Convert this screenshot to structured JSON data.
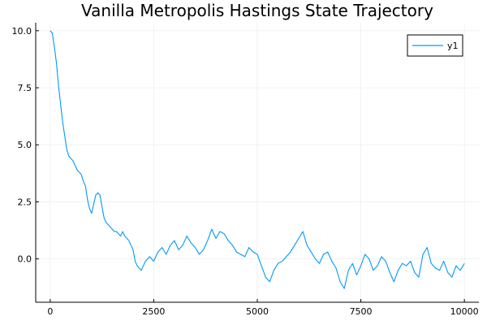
{
  "chart_data": {
    "type": "line",
    "title": "Vanilla Metropolis Hastings State Trajectory",
    "xlabel": "",
    "ylabel": "",
    "xlim": [
      -350,
      10350
    ],
    "ylim": [
      -1.9,
      10.35
    ],
    "x_ticks": [
      0,
      2500,
      5000,
      7500,
      10000
    ],
    "x_tick_labels": [
      "0",
      "2500",
      "5000",
      "7500",
      "10000"
    ],
    "y_ticks": [
      0.0,
      2.5,
      5.0,
      7.5,
      10.0
    ],
    "y_tick_labels": [
      "0.0",
      "2.5",
      "5.0",
      "7.5",
      "10.0"
    ],
    "grid": true,
    "legend_position": "top-right",
    "series": [
      {
        "name": "y1",
        "color": "#009af9",
        "x": [
          0,
          50,
          100,
          150,
          200,
          250,
          300,
          350,
          400,
          450,
          500,
          550,
          600,
          650,
          700,
          750,
          800,
          850,
          900,
          950,
          1000,
          1050,
          1100,
          1150,
          1200,
          1250,
          1300,
          1350,
          1400,
          1450,
          1500,
          1550,
          1600,
          1650,
          1700,
          1750,
          1800,
          1850,
          1900,
          1950,
          2000,
          2050,
          2100,
          2150,
          2200,
          2300,
          2400,
          2500,
          2600,
          2700,
          2800,
          2900,
          3000,
          3100,
          3200,
          3300,
          3400,
          3500,
          3600,
          3700,
          3800,
          3900,
          4000,
          4100,
          4200,
          4300,
          4400,
          4500,
          4600,
          4700,
          4800,
          4900,
          5000,
          5100,
          5200,
          5300,
          5400,
          5500,
          5600,
          5700,
          5800,
          5900,
          6000,
          6100,
          6200,
          6300,
          6400,
          6500,
          6600,
          6700,
          6800,
          6900,
          7000,
          7100,
          7200,
          7300,
          7400,
          7500,
          7600,
          7700,
          7800,
          7900,
          8000,
          8100,
          8200,
          8300,
          8400,
          8500,
          8600,
          8700,
          8800,
          8900,
          9000,
          9100,
          9200,
          9300,
          9400,
          9500,
          9600,
          9700,
          9800,
          9900,
          10000
        ],
        "y": [
          10.0,
          9.9,
          9.3,
          8.6,
          7.6,
          6.8,
          6.0,
          5.4,
          4.8,
          4.5,
          4.4,
          4.3,
          4.1,
          3.9,
          3.8,
          3.7,
          3.4,
          3.2,
          2.6,
          2.2,
          2.0,
          2.4,
          2.8,
          2.9,
          2.8,
          2.3,
          1.8,
          1.6,
          1.5,
          1.4,
          1.3,
          1.2,
          1.2,
          1.1,
          1.0,
          1.2,
          1.0,
          0.9,
          0.8,
          0.6,
          0.4,
          -0.1,
          -0.3,
          -0.4,
          -0.5,
          -0.1,
          0.1,
          -0.1,
          0.3,
          0.5,
          0.2,
          0.6,
          0.8,
          0.4,
          0.6,
          1.0,
          0.7,
          0.5,
          0.2,
          0.4,
          0.8,
          1.3,
          0.9,
          1.2,
          1.1,
          0.8,
          0.6,
          0.3,
          0.2,
          0.1,
          0.5,
          0.3,
          0.2,
          -0.3,
          -0.8,
          -1.0,
          -0.5,
          -0.2,
          -0.1,
          0.1,
          0.3,
          0.6,
          0.9,
          1.2,
          0.6,
          0.3,
          0.0,
          -0.2,
          0.2,
          0.3,
          -0.1,
          -0.4,
          -1.0,
          -1.3,
          -0.5,
          -0.2,
          -0.7,
          -0.3,
          0.2,
          0.0,
          -0.5,
          -0.3,
          0.1,
          -0.1,
          -0.6,
          -1.0,
          -0.5,
          -0.2,
          -0.3,
          -0.1,
          -0.6,
          -0.8,
          0.2,
          0.5,
          -0.2,
          -0.4,
          -0.5,
          -0.1,
          -0.6,
          -0.8,
          -0.3,
          -0.5,
          -0.2
        ]
      }
    ]
  }
}
